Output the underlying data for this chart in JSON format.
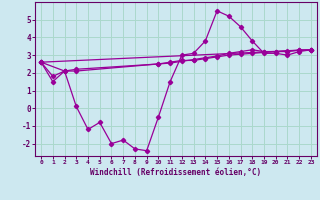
{
  "bg_color": "#cde8f0",
  "line_color": "#990099",
  "grid_color": "#aad8cc",
  "xlabel": "Windchill (Refroidissement éolien,°C)",
  "xlabel_color": "#660066",
  "tick_color": "#660066",
  "xlim": [
    -0.5,
    23.5
  ],
  "ylim": [
    -2.7,
    6.0
  ],
  "yticks": [
    -2,
    -1,
    0,
    1,
    2,
    3,
    4,
    5
  ],
  "xticks": [
    0,
    1,
    2,
    3,
    4,
    5,
    6,
    7,
    8,
    9,
    10,
    11,
    12,
    13,
    14,
    15,
    16,
    17,
    18,
    19,
    20,
    21,
    22,
    23
  ],
  "line1_x": [
    0,
    1,
    2,
    3,
    4,
    5,
    6,
    7,
    8,
    9,
    10,
    11,
    12,
    13,
    14,
    15,
    16,
    17,
    18,
    19,
    20,
    21,
    22,
    23
  ],
  "line1_y": [
    2.6,
    1.5,
    2.1,
    0.1,
    -1.2,
    -0.8,
    -2.0,
    -1.8,
    -2.3,
    -2.4,
    -0.5,
    1.5,
    3.0,
    3.1,
    3.8,
    5.5,
    5.2,
    4.6,
    3.8,
    3.1,
    3.1,
    3.0,
    3.2,
    3.3
  ],
  "line2_x": [
    0,
    2,
    3,
    10,
    11,
    12,
    13,
    14,
    15,
    16,
    17,
    18,
    19,
    20,
    21,
    22,
    23
  ],
  "line2_y": [
    2.6,
    2.1,
    2.1,
    2.5,
    2.6,
    2.7,
    2.7,
    2.8,
    2.9,
    3.0,
    3.05,
    3.1,
    3.15,
    3.2,
    3.25,
    3.28,
    3.3
  ],
  "line3_x": [
    0,
    23
  ],
  "line3_y": [
    2.6,
    3.3
  ],
  "line4_x": [
    0,
    1,
    2,
    3,
    10,
    11,
    12,
    13,
    14,
    15,
    16,
    17,
    18,
    19,
    20,
    21,
    22,
    23
  ],
  "line4_y": [
    2.6,
    1.8,
    2.1,
    2.2,
    2.5,
    2.55,
    2.65,
    2.75,
    2.85,
    2.95,
    3.1,
    3.2,
    3.3,
    3.2,
    3.2,
    3.2,
    3.28,
    3.3
  ]
}
